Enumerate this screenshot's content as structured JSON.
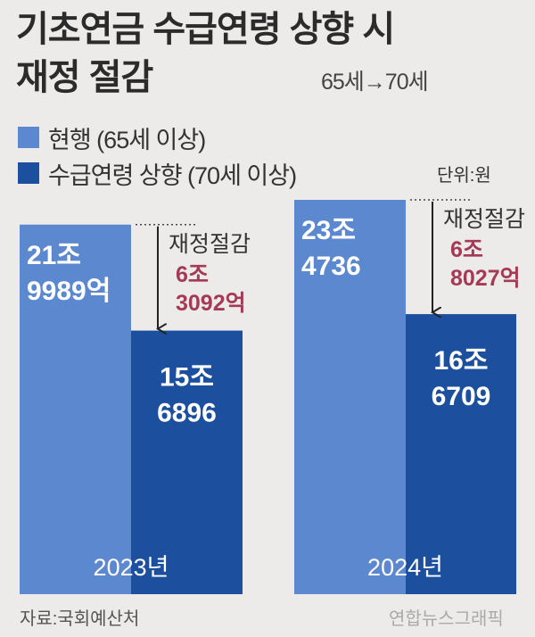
{
  "header": {
    "title_line1": "기초연금 수급연령 상향 시",
    "title_line2": "재정 절감",
    "subtitle": "65세→70세"
  },
  "unit_label": "단위:원",
  "source": "자료:국회예산처",
  "credit": "연합뉴스그래픽",
  "chart_data": {
    "type": "bar",
    "categories": [
      "2023년",
      "2024년"
    ],
    "series": [
      {
        "name": "현행 (65세 이상)",
        "values": [
          219989,
          234736
        ],
        "labels": [
          [
            "21조",
            "9989억"
          ],
          [
            "23조",
            "4736"
          ]
        ],
        "color": "#5b88ce"
      },
      {
        "name": "수급연령 상향 (70세 이상)",
        "values": [
          156896,
          166709
        ],
        "labels": [
          [
            "15조",
            "6896"
          ],
          [
            "16조",
            "6709"
          ]
        ],
        "color": "#1c4f9d"
      }
    ],
    "annotations": [
      {
        "label": "재정절감",
        "value_lines": [
          "6조",
          "3092억"
        ]
      },
      {
        "label": "재정절감",
        "value_lines": [
          "6조",
          "8027억"
        ]
      }
    ],
    "value_unit": "억원",
    "ylim": [
      0,
      234736
    ],
    "accent_color": "#a33a56"
  }
}
